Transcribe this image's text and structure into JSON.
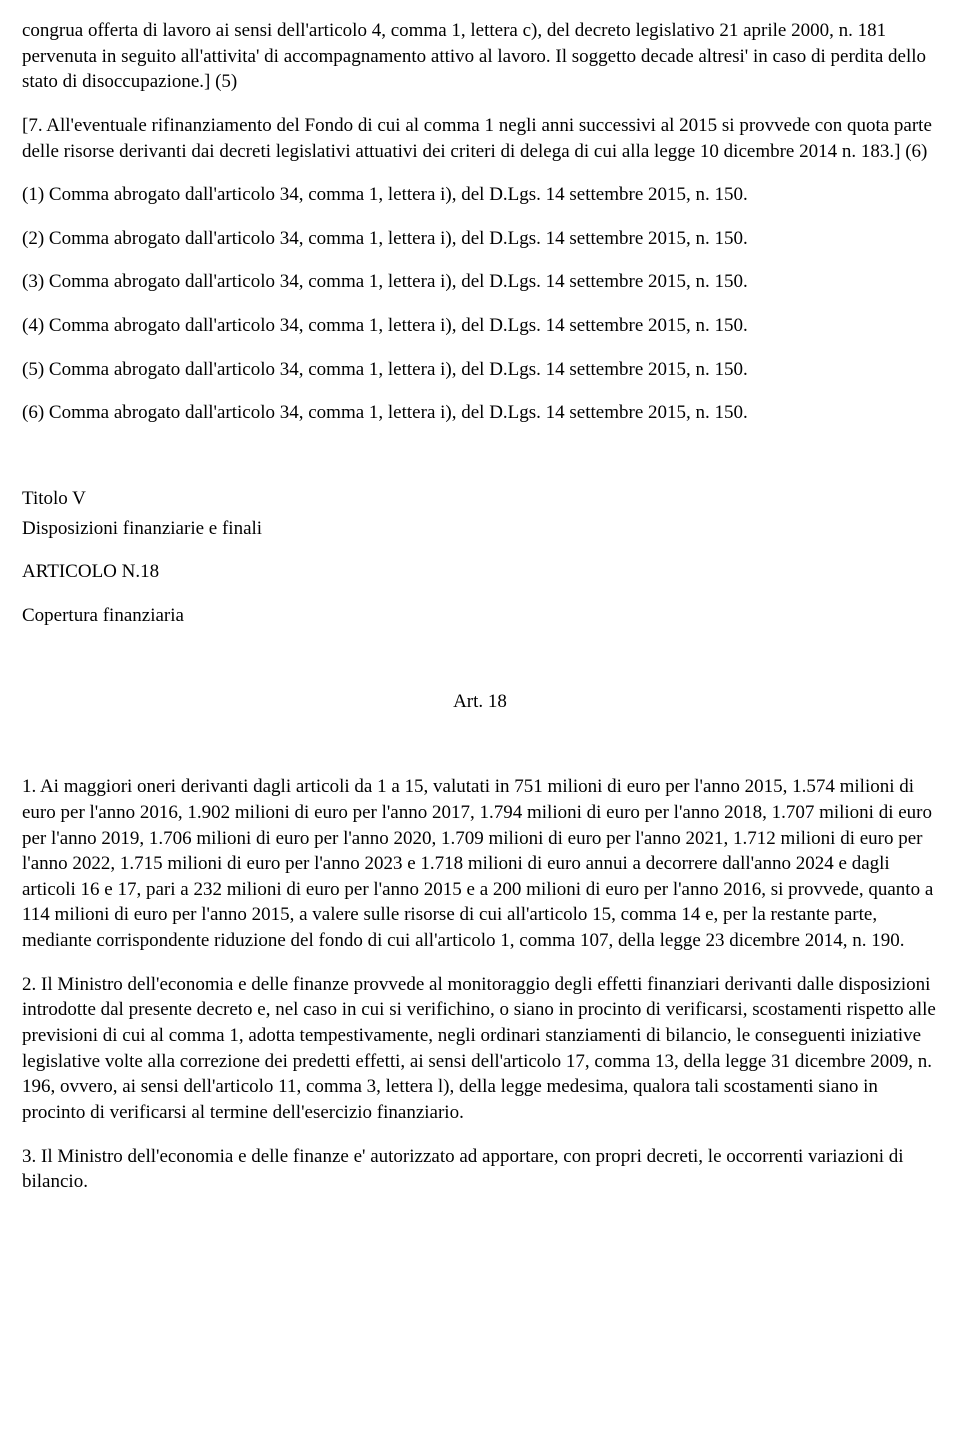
{
  "intro_p1": "congrua offerta di lavoro ai sensi dell'articolo 4, comma 1, lettera c), del decreto legislativo 21 aprile 2000, n. 181 pervenuta in seguito all'attivita' di accompagnamento attivo al lavoro. Il soggetto decade altresi' in caso di perdita dello stato di disoccupazione.] (5)",
  "intro_p2": "[7. All'eventuale rifinanziamento del Fondo di cui al comma 1 negli anni successivi al 2015 si provvede con quota parte delle risorse derivanti dai decreti legislativi attuativi dei criteri di delega di cui alla legge 10 dicembre 2014 n. 183.] (6)",
  "note1": "(1) Comma abrogato dall'articolo 34, comma 1, lettera i), del D.Lgs. 14 settembre 2015, n. 150.",
  "note2": "(2) Comma abrogato dall'articolo 34, comma 1, lettera i), del D.Lgs. 14 settembre 2015, n. 150.",
  "note3": "(3) Comma abrogato dall'articolo 34, comma 1, lettera i), del D.Lgs. 14 settembre 2015, n. 150.",
  "note4": "(4) Comma abrogato dall'articolo 34, comma 1, lettera i), del D.Lgs. 14 settembre 2015, n. 150.",
  "note5": "(5) Comma abrogato dall'articolo 34, comma 1, lettera i), del D.Lgs. 14 settembre 2015, n. 150.",
  "note6": "(6) Comma abrogato dall'articolo 34, comma 1, lettera i), del D.Lgs. 14 settembre 2015, n. 150.",
  "titolo": "Titolo V",
  "disposizioni": "Disposizioni finanziarie e finali",
  "articolo_n": "ARTICOLO N.18",
  "copertura": "Copertura finanziaria",
  "art_heading": "Art. 18",
  "body_p1": "1. Ai maggiori oneri derivanti dagli articoli da 1 a 15, valutati in 751 milioni di euro per l'anno 2015, 1.574 milioni di euro per l'anno 2016, 1.902 milioni di euro per l'anno 2017, 1.794 milioni di euro per l'anno 2018, 1.707 milioni di euro per l'anno 2019, 1.706 milioni di euro per l'anno 2020, 1.709 milioni di euro per l'anno 2021, 1.712 milioni di euro per l'anno 2022, 1.715 milioni di euro per l'anno 2023 e 1.718 milioni di euro annui a decorrere dall'anno 2024 e dagli articoli 16 e 17, pari a 232 milioni di euro per l'anno 2015 e a 200 milioni di euro per l'anno 2016, si provvede, quanto a 114 milioni di euro per l'anno 2015, a valere sulle risorse di cui all'articolo 15, comma 14 e, per la restante parte, mediante corrispondente riduzione del fondo di cui all'articolo 1, comma 107, della legge 23 dicembre 2014, n. 190.",
  "body_p2": "2. Il Ministro dell'economia e delle finanze provvede al monitoraggio degli effetti finanziari derivanti dalle disposizioni introdotte dal presente decreto e, nel caso in cui si verifichino, o siano in procinto di verificarsi, scostamenti rispetto alle previsioni di cui al comma 1, adotta tempestivamente, negli ordinari stanziamenti di bilancio, le conseguenti iniziative legislative volte alla correzione dei predetti effetti, ai sensi dell'articolo 17, comma 13, della legge 31 dicembre 2009, n. 196, ovvero, ai sensi dell'articolo 11, comma 3, lettera l), della legge medesima, qualora tali scostamenti siano in procinto di verificarsi al termine dell'esercizio finanziario.",
  "body_p3": "3. Il Ministro dell'economia e delle finanze e' autorizzato ad apportare, con propri decreti, le occorrenti variazioni di bilancio."
}
